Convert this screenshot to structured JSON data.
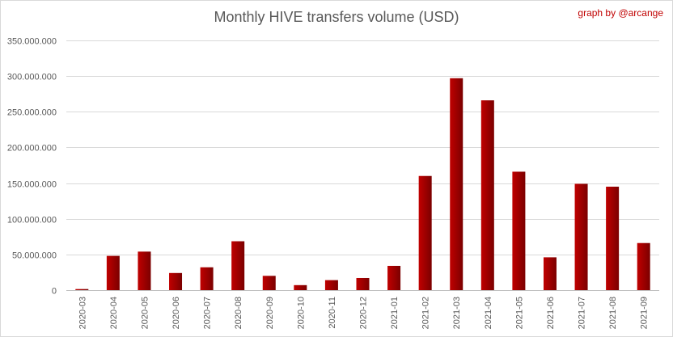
{
  "chart_data": {
    "type": "bar",
    "title": "Monthly HIVE transfers volume (USD)",
    "credit": "graph by @arcange",
    "xlabel": "",
    "ylabel": "",
    "ylim": [
      0,
      350000000
    ],
    "yticks": [
      0,
      50000000,
      100000000,
      150000000,
      200000000,
      250000000,
      300000000,
      350000000
    ],
    "ytick_labels": [
      "0",
      "50.000.000",
      "100.000.000",
      "150.000.000",
      "200.000.000",
      "250.000.000",
      "300.000.000",
      "350.000.000"
    ],
    "grid": true,
    "legend": "none",
    "categories": [
      "2020-03",
      "2020-04",
      "2020-05",
      "2020-06",
      "2020-07",
      "2020-08",
      "2020-09",
      "2020-10",
      "2020-11",
      "2020-12",
      "2021-01",
      "2021-02",
      "2021-03",
      "2021-04",
      "2021-05",
      "2021-06",
      "2021-07",
      "2021-08",
      "2021-09"
    ],
    "values": [
      1500000,
      48000000,
      54000000,
      24000000,
      32000000,
      68500000,
      20000000,
      7000000,
      14000000,
      17000000,
      34000000,
      160000000,
      297000000,
      266000000,
      166000000,
      46000000,
      149000000,
      145000000,
      66000000
    ],
    "colors": {
      "bar_light": "#c00000",
      "bar_dark": "#7b0000",
      "grid": "#d9d9d9",
      "axis": "#bfbfbf",
      "text": "#595959",
      "credit": "#c00000"
    }
  }
}
